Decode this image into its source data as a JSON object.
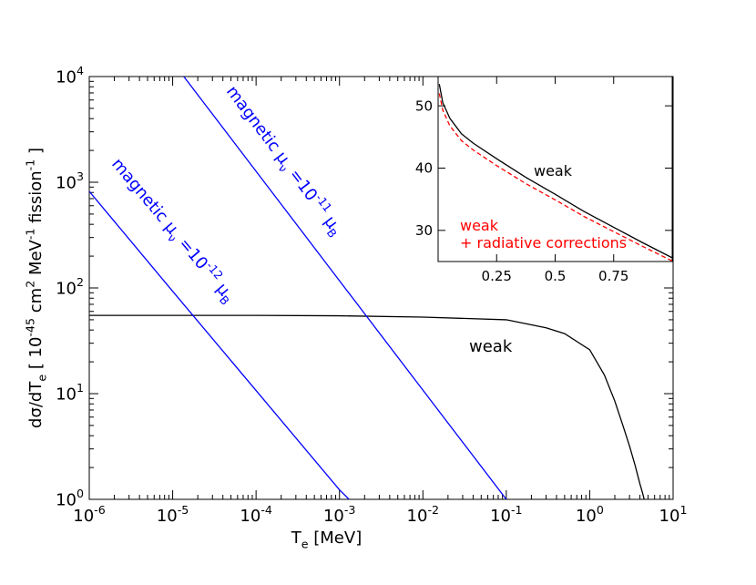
{
  "chart_data": [
    {
      "type": "line",
      "xlog": true,
      "ylog": true,
      "minor_ticks": true,
      "xlabel": [
        "T",
        {
          "sub": "e"
        },
        "  [MeV]"
      ],
      "ylabel": [
        "dσ/dT",
        {
          "sub": "e"
        },
        "    [ 10",
        {
          "sup": "-45"
        },
        " cm",
        {
          "sup": "2"
        },
        " MeV",
        {
          "sup": "-1"
        },
        " fission",
        {
          "sup": "-1"
        },
        " ]"
      ],
      "xlim": [
        1e-06,
        10
      ],
      "ylim": [
        1,
        10000
      ],
      "xticks": [
        {
          "value": 1e-06,
          "label": "10",
          "exponent": "-6"
        },
        {
          "value": 1e-05,
          "label": "10",
          "exponent": "-5"
        },
        {
          "value": 0.0001,
          "label": "10",
          "exponent": "-4"
        },
        {
          "value": 0.001,
          "label": "10",
          "exponent": "-3"
        },
        {
          "value": 0.01,
          "label": "10",
          "exponent": "-2"
        },
        {
          "value": 0.1,
          "label": "10",
          "exponent": "-1"
        },
        {
          "value": 1,
          "label": "10",
          "exponent": "0"
        },
        {
          "value": 10,
          "label": "10",
          "exponent": "1"
        }
      ],
      "yticks": [
        {
          "value": 1,
          "label": "10",
          "exponent": "0"
        },
        {
          "value": 10,
          "label": "10",
          "exponent": "1"
        },
        {
          "value": 100,
          "label": "10",
          "exponent": "2"
        },
        {
          "value": 1000,
          "label": "10",
          "exponent": "3"
        },
        {
          "value": 10000,
          "label": "10",
          "exponent": "4"
        }
      ],
      "series": [
        {
          "label": [
            [
              "weak"
            ]
          ],
          "color": "#000000",
          "x": [
            1e-06,
            0.0001,
            0.001,
            0.01,
            0.1,
            0.3,
            0.5,
            1,
            1.5,
            2,
            2.5,
            3,
            3.5,
            4,
            4.3,
            4.5
          ],
          "values": [
            55,
            55,
            54.5,
            53,
            50,
            42,
            37,
            26,
            15,
            8.5,
            5,
            3.2,
            2.1,
            1.4,
            1.15,
            1.0
          ]
        },
        {
          "label": [
            [
              "magnetic μ",
              {
                "sub": "ν"
              },
              " =10",
              {
                "sup": "-12"
              },
              " μ",
              {
                "sub": "B"
              }
            ]
          ],
          "color": "#0000ff",
          "x": [
            1e-06,
            1e-05,
            0.0001,
            0.001,
            0.0013
          ],
          "values": [
            820,
            93,
            10.7,
            1.23,
            1.0
          ]
        },
        {
          "label": [
            [
              "magnetic μ",
              {
                "sub": "ν"
              },
              " =10",
              {
                "sup": "-11"
              },
              " μ",
              {
                "sub": "B"
              }
            ]
          ],
          "color": "#0000ff",
          "x": [
            1.36e-05,
            0.0001,
            0.001,
            0.01,
            0.1
          ],
          "values": [
            10000,
            1270,
            117,
            10.8,
            1.0
          ]
        }
      ]
    },
    {
      "type": "line",
      "xlog": false,
      "ylog": false,
      "minor_ticks": false,
      "xlim": [
        0,
        1
      ],
      "ylim": [
        25,
        54.7
      ],
      "xticks": [
        0.25,
        0.5,
        0.75
      ],
      "yticks": [
        30,
        40,
        50
      ],
      "series": [
        {
          "label": [
            [
              "weak"
            ]
          ],
          "color": "#000000",
          "dash": false,
          "x": [
            0.005,
            0.02,
            0.05,
            0.1,
            0.15,
            0.25,
            0.375,
            0.5,
            0.625,
            0.75,
            0.875,
            1.0
          ],
          "values": [
            53.5,
            50.5,
            48,
            45.5,
            44,
            41.5,
            38.5,
            35.8,
            33,
            30.5,
            28,
            25.6
          ]
        },
        {
          "label": [
            [
              "weak"
            ],
            [
              "+ radiative corrections"
            ]
          ],
          "color": "#ff0000",
          "dash": true,
          "x": [
            0.005,
            0.02,
            0.05,
            0.1,
            0.15,
            0.25,
            0.375,
            0.5,
            0.625,
            0.75,
            0.875,
            1.0
          ],
          "values": [
            52,
            49.3,
            46.8,
            44.4,
            42.9,
            40.4,
            37.5,
            34.9,
            32.2,
            29.8,
            27.4,
            25.1
          ]
        }
      ]
    }
  ]
}
